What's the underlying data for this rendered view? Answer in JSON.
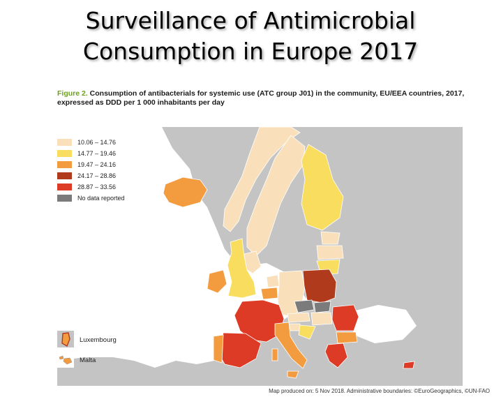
{
  "slide": {
    "title_line1": "Surveillance of Antimicrobial",
    "title_line2": "Consumption in Europe 2017"
  },
  "figure": {
    "label": "Figure 2.",
    "caption": " Consumption of antibacterials for systemic use (ATC group J01) in the community, EU/EEA countries, 2017, expressed as DDD per 1 000 inhabitants per day"
  },
  "legend": [
    {
      "label": "10.06 – 14.76",
      "color": "#f9e0bb"
    },
    {
      "label": "14.77 – 19.46",
      "color": "#f8dd5e"
    },
    {
      "label": "19.47 – 24.16",
      "color": "#f39c3f"
    },
    {
      "label": "24.17 – 28.86",
      "color": "#b03a1c"
    },
    {
      "label": "28.87 – 33.56",
      "color": "#dd3b25"
    },
    {
      "label": "No data reported",
      "color": "#7b7b7b"
    }
  ],
  "insets": {
    "luxembourg": "Luxembourg",
    "malta": "Malta"
  },
  "colors": {
    "sea": "#ffffff",
    "non_eu_land": "#c4c4c4",
    "border": "#ffffff"
  },
  "credits": "Map produced on: 5 Nov 2018. Administrative boundaries: ©EuroGeographics, ©UN-FAO"
}
